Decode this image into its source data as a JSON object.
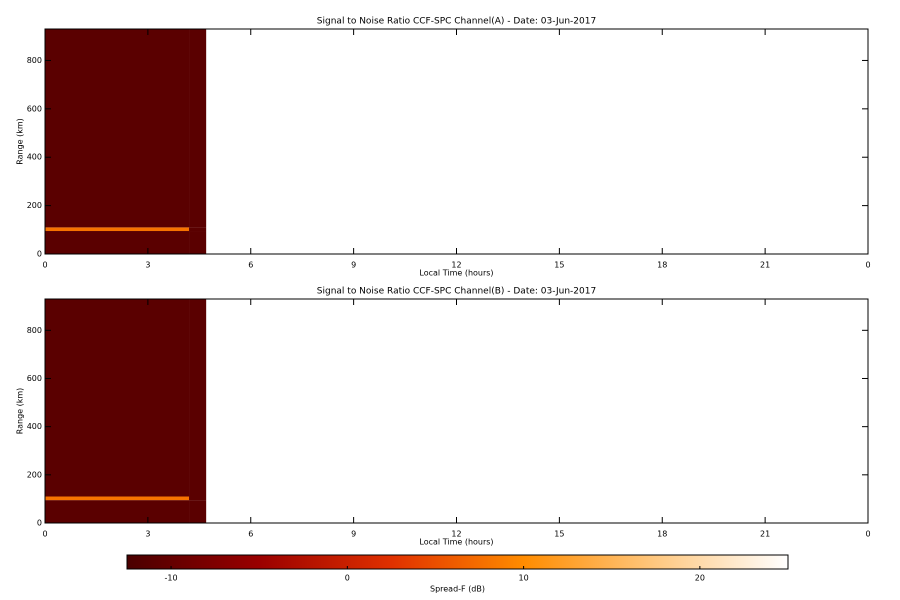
{
  "chart_data": [
    {
      "type": "heatmap",
      "title": "Signal to Noise Ratio CCF-SPC Channel(A) - Date: 03-Jun-2017",
      "xlabel": "Local Time (hours)",
      "ylabel": "Range (km)",
      "x_edges": [
        0,
        4.2,
        4.7
      ],
      "y_edges": [
        0,
        95,
        110,
        930
      ],
      "values": [
        [
          -11,
          -11
        ],
        [
          8,
          -11
        ],
        [
          -11,
          -11
        ]
      ],
      "xlim": [
        0,
        24
      ],
      "xticks": [
        0,
        3,
        6,
        9,
        12,
        15,
        18,
        21,
        {
          "value": 24,
          "label": "0"
        }
      ],
      "ylim": [
        0,
        930
      ],
      "yticks": [
        0,
        200,
        400,
        600,
        800
      ]
    },
    {
      "type": "heatmap",
      "title": "Signal to Noise Ratio CCF-SPC Channel(B) - Date: 03-Jun-2017",
      "xlabel": "Local Time (hours)",
      "ylabel": "Range (km)",
      "x_edges": [
        0,
        4.2,
        4.7
      ],
      "y_edges": [
        0,
        95,
        110,
        930
      ],
      "values": [
        [
          -11,
          -11
        ],
        [
          8,
          -11
        ],
        [
          -11,
          -11
        ]
      ],
      "xlim": [
        0,
        24
      ],
      "xticks": [
        0,
        3,
        6,
        9,
        12,
        15,
        18,
        21,
        {
          "value": 24,
          "label": "0"
        }
      ],
      "ylim": [
        0,
        930
      ],
      "yticks": [
        0,
        200,
        400,
        600,
        800
      ]
    }
  ],
  "colorbar": {
    "label": "Spread-F (dB)",
    "clim": [
      -12.5,
      25
    ],
    "ticks": [
      -10,
      0,
      10,
      20
    ],
    "colormap": [
      "#4a0000",
      "#9a0000",
      "#e03000",
      "#ff8c00",
      "#ffc880",
      "#ffffff"
    ]
  }
}
